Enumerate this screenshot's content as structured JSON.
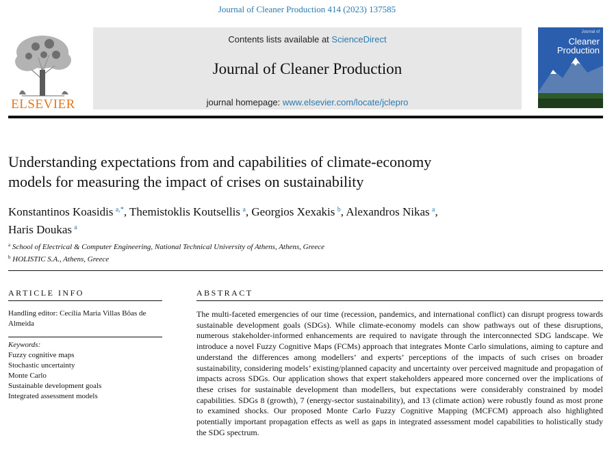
{
  "citation": "Journal of Cleaner Production 414 (2023) 137585",
  "publisher": {
    "name": "ELSEVIER"
  },
  "header": {
    "contents_prefix": "Contents lists available at ",
    "contents_link": "ScienceDirect",
    "journal_title": "Journal of Cleaner Production",
    "homepage_prefix": "journal homepage: ",
    "homepage_link": "www.elsevier.com/locate/jclepro"
  },
  "cover": {
    "small": "Journal of",
    "line1": "Cleaner",
    "line2": "Production"
  },
  "article": {
    "title_line1": "Understanding expectations from and capabilities of climate-economy",
    "title_line2": "models for measuring the impact of crises on sustainability",
    "authors": [
      {
        "name": "Konstantinos Koasidis",
        "sup": "a,*",
        "sep": ", "
      },
      {
        "name": "Themistoklis Koutsellis",
        "sup": "a",
        "sep": ", "
      },
      {
        "name": "Georgios Xexakis",
        "sup": "b",
        "sep": ", "
      },
      {
        "name": "Alexandros Nikas",
        "sup": "a",
        "sep": ", "
      },
      {
        "name": "Haris Doukas",
        "sup": "a",
        "sep": ""
      }
    ],
    "affiliations": [
      {
        "sup": "a",
        "text": "School of Electrical & Computer Engineering, National Technical University of Athens, Athens, Greece"
      },
      {
        "sup": "b",
        "text": "HOLISTIC S.A., Athens, Greece"
      }
    ]
  },
  "article_info": {
    "heading": "ARTICLE INFO",
    "handling_editor": "Handling editor: Cecília Maria Villas Bôas de Almeida",
    "keywords_label": "Keywords:",
    "keywords": [
      "Fuzzy cognitive maps",
      "Stochastic uncertainty",
      "Monte Carlo",
      "Sustainable development goals",
      "Integrated assessment models"
    ]
  },
  "abstract": {
    "heading": "ABSTRACT",
    "text": "The multi-faceted emergencies of our time (recession, pandemics, and international conflict) can disrupt progress towards sustainable development goals (SDGs). While climate-economy models can show pathways out of these disruptions, numerous stakeholder-informed enhancements are required to navigate through the interconnected SDG landscape. We introduce a novel Fuzzy Cognitive Maps (FCMs) approach that integrates Monte Carlo simulations, aiming to capture and understand the differences among modellers’ and experts’ perceptions of the impacts of such crises on broader sustainability, considering models’ existing/planned capacity and uncertainty over perceived magnitude and propagation of impacts across SDGs. Our application shows that expert stakeholders appeared more concerned over the implications of these crises for sustainable development than modellers, but expectations were considerably constrained by model capabilities. SDGs 8 (growth), 7 (energy-sector sustainability), and 13 (climate action) were robustly found as most prone to examined shocks. Our proposed Monte Carlo Fuzzy Cognitive Mapping (MCFCM) approach also highlighted potentially important propagation effects as well as gaps in integrated assessment model capabilities to holistically study the SDG spectrum."
  }
}
